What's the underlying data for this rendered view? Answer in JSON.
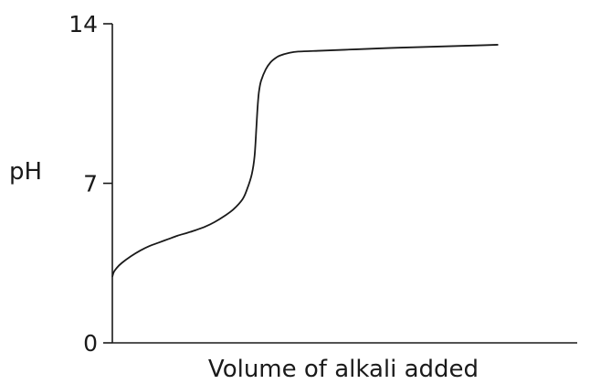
{
  "chart_data": {
    "type": "line",
    "title": "",
    "xlabel": "Volume of alkali added",
    "ylabel": "pH",
    "ylim": [
      0,
      14
    ],
    "yticks": [
      0,
      7,
      14
    ],
    "xticks": [],
    "grid": false,
    "series": [
      {
        "color": "#1a1a1a",
        "x": [
          0,
          0.3,
          1,
          2,
          4,
          6,
          8,
          10,
          12,
          14,
          16,
          18,
          20,
          22,
          24,
          26,
          28,
          29,
          30,
          30.6,
          31,
          31.2,
          31.4,
          31.6,
          32,
          33,
          34,
          35,
          36,
          38,
          40,
          45,
          50,
          55,
          60,
          65,
          70,
          75,
          80,
          83
        ],
        "y": [
          2.9,
          3.1,
          3.3,
          3.5,
          3.8,
          4.05,
          4.25,
          4.4,
          4.55,
          4.7,
          4.82,
          4.95,
          5.1,
          5.3,
          5.55,
          5.85,
          6.3,
          6.75,
          7.4,
          8.2,
          9.5,
          10.2,
          10.75,
          11.1,
          11.5,
          12.0,
          12.3,
          12.48,
          12.6,
          12.72,
          12.78,
          12.82,
          12.86,
          12.9,
          12.94,
          12.97,
          13.0,
          13.03,
          13.06,
          13.08
        ]
      }
    ]
  }
}
